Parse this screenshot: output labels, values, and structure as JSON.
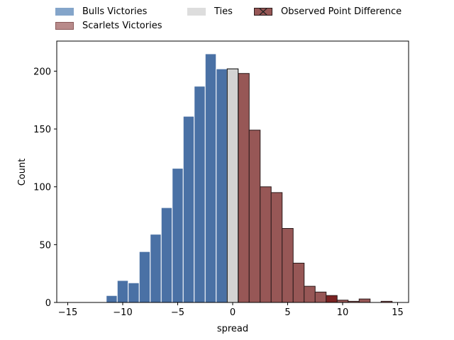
{
  "chart_data": {
    "type": "bar",
    "title": "",
    "xlabel": "spread",
    "ylabel": "Count",
    "xlim": [
      -16,
      16
    ],
    "ylim": [
      0,
      226
    ],
    "grid": false,
    "legend_position": "top, outside plot, 3 columns",
    "x_ticks": [
      -15,
      -10,
      -5,
      0,
      5,
      10,
      15
    ],
    "y_ticks": [
      0,
      50,
      100,
      150,
      200
    ],
    "bin_width": 1,
    "series": [
      {
        "name": "Bulls Victories",
        "color": "#4a71a5",
        "edge_color": "#ffffff",
        "bins": [
          {
            "x": -11,
            "value": 6
          },
          {
            "x": -10,
            "value": 19
          },
          {
            "x": -9,
            "value": 17
          },
          {
            "x": -8,
            "value": 44
          },
          {
            "x": -7,
            "value": 59
          },
          {
            "x": -6,
            "value": 82
          },
          {
            "x": -5,
            "value": 116
          },
          {
            "x": -4,
            "value": 161
          },
          {
            "x": -3,
            "value": 187
          },
          {
            "x": -2,
            "value": 215
          },
          {
            "x": -1,
            "value": 202
          }
        ]
      },
      {
        "name": "Scarlets Victories",
        "color": "#975756",
        "edge_color": "#2b1a1a",
        "bins": [
          {
            "x": 1,
            "value": 198
          },
          {
            "x": 2,
            "value": 149
          },
          {
            "x": 3,
            "value": 100
          },
          {
            "x": 4,
            "value": 95
          },
          {
            "x": 5,
            "value": 64
          },
          {
            "x": 6,
            "value": 34
          },
          {
            "x": 7,
            "value": 14
          },
          {
            "x": 8,
            "value": 9
          },
          {
            "x": 9,
            "value": 6,
            "observed": true
          },
          {
            "x": 10,
            "value": 2
          },
          {
            "x": 11,
            "value": 1
          },
          {
            "x": 12,
            "value": 3
          },
          {
            "x": 14,
            "value": 1
          }
        ]
      },
      {
        "name": "Ties",
        "color": "#d3d3d3",
        "edge_color": "#000000",
        "bins": [
          {
            "x": 0,
            "value": 202
          }
        ]
      }
    ],
    "observed_point_difference": {
      "name": "Observed Point Difference",
      "x": 9,
      "color": "#7a2222"
    },
    "legend": [
      {
        "label": "Bulls Victories",
        "color": "#84a5ca",
        "edge": "#84a5ca",
        "marker": "none"
      },
      {
        "label": "Scarlets Victories",
        "color": "#b88a8a",
        "edge": "#8a5a5a",
        "marker": "none"
      },
      {
        "label": "Ties",
        "color": "#dddddd",
        "edge": "#dddddd",
        "marker": "none"
      },
      {
        "label": "Observed Point Difference",
        "color": "#975756",
        "edge": "#2b1a1a",
        "marker": "x"
      }
    ]
  }
}
